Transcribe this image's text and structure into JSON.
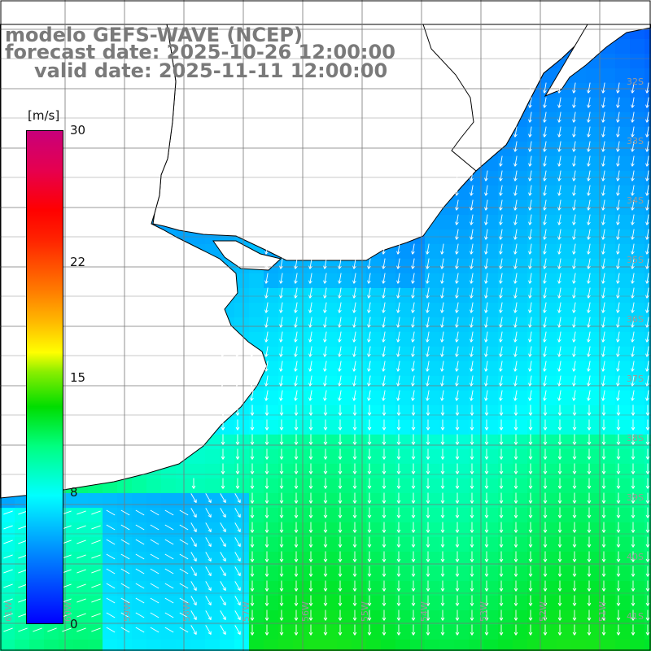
{
  "title": {
    "line1": "modelo GEFS-WAVE (NCEP)",
    "line2": "forecast date: 2025-10-26 12:00:00",
    "line3": "valid date: 2025-11-11 12:00:00"
  },
  "colorbar": {
    "unit": "[m/s]",
    "ticks": [
      {
        "value": 30,
        "label": "30"
      },
      {
        "value": 22,
        "label": "22"
      },
      {
        "value": 15,
        "label": "15"
      },
      {
        "value": 8,
        "label": "8"
      },
      {
        "value": 0,
        "label": "0"
      }
    ],
    "range": [
      0,
      30
    ]
  },
  "map": {
    "latitude_labels": [
      "32S",
      "33S",
      "34S",
      "35S",
      "36S",
      "37S",
      "38S",
      "39S",
      "40S",
      "41S"
    ],
    "longitude_labels": [
      "61W",
      "60W",
      "59W",
      "58W",
      "57W",
      "56W",
      "55W",
      "54W",
      "53W",
      "52W",
      "51W"
    ],
    "land_color": "#ffffff",
    "grid_color": "#777777",
    "arrow_color": "#ffffff"
  }
}
